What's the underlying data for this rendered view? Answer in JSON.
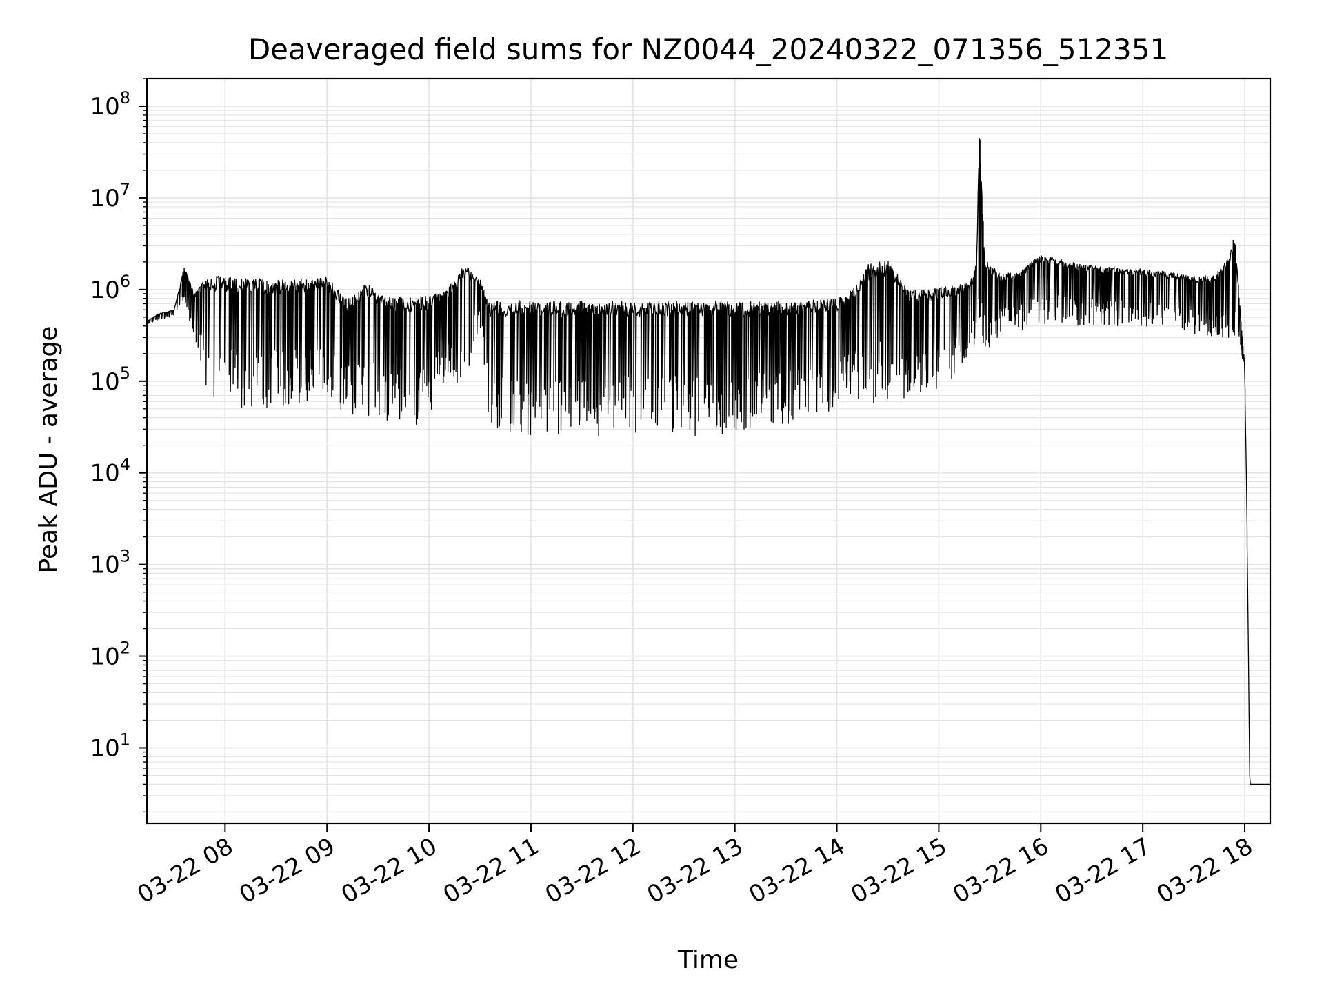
{
  "chart_data": {
    "type": "line",
    "title": "Deaveraged field sums for NZ0044_20240322_071356_512351",
    "xlabel": "Time",
    "ylabel": "Peak ADU - average",
    "yscale": "log",
    "ylim": [
      1.5,
      200000000
    ],
    "xlim": [
      "03-22 07:14",
      "03-22 18:15"
    ],
    "grid": true,
    "line_color": "#000000",
    "grid_color": "#e3e3e3",
    "x_ticks": [
      "03-22 08",
      "03-22 09",
      "03-22 10",
      "03-22 11",
      "03-22 12",
      "03-22 13",
      "03-22 14",
      "03-22 15",
      "03-22 16",
      "03-22 17",
      "03-22 18"
    ],
    "y_ticks": [
      {
        "base": "10",
        "exp": "1",
        "value": 10
      },
      {
        "base": "10",
        "exp": "2",
        "value": 100
      },
      {
        "base": "10",
        "exp": "3",
        "value": 1000
      },
      {
        "base": "10",
        "exp": "4",
        "value": 10000
      },
      {
        "base": "10",
        "exp": "5",
        "value": 100000
      },
      {
        "base": "10",
        "exp": "6",
        "value": 1000000
      },
      {
        "base": "10",
        "exp": "7",
        "value": 10000000
      },
      {
        "base": "10",
        "exp": "8",
        "value": 100000000
      }
    ],
    "series": [
      {
        "x_hours": [
          7.23,
          7.35,
          7.5,
          7.6,
          7.7,
          7.8,
          7.9,
          8.0,
          8.2,
          8.4,
          8.6,
          8.8,
          9.0,
          9.2,
          9.4,
          9.6,
          9.8,
          10.0,
          10.2,
          10.35,
          10.5,
          10.6,
          10.7,
          10.9,
          11.2,
          11.5,
          11.8,
          12.1,
          12.4,
          12.7,
          13.0,
          13.3,
          13.6,
          13.9,
          14.1,
          14.3,
          14.5,
          14.7,
          14.9,
          15.1,
          15.3,
          15.37,
          15.4,
          15.45,
          15.6,
          15.8,
          16.0,
          16.3,
          16.6,
          16.9,
          17.2,
          17.5,
          17.7,
          17.85,
          17.9,
          17.95,
          18.0,
          18.02,
          18.05,
          18.15,
          18.25
        ],
        "upper": [
          450000,
          550000,
          600000,
          1800000,
          900000,
          1300000,
          1400000,
          1400000,
          1350000,
          1300000,
          1300000,
          1300000,
          1400000,
          800000,
          1200000,
          850000,
          850000,
          850000,
          1100000,
          1900000,
          1300000,
          750000,
          750000,
          750000,
          750000,
          750000,
          750000,
          750000,
          750000,
          750000,
          750000,
          750000,
          750000,
          800000,
          850000,
          1900000,
          2200000,
          1000000,
          1000000,
          1100000,
          1200000,
          2000000,
          85000000,
          2200000,
          1500000,
          1600000,
          2500000,
          2000000,
          1800000,
          1700000,
          1600000,
          1400000,
          1400000,
          2500000,
          4000000,
          800000,
          150000,
          5000,
          4,
          4,
          4
        ],
        "lower": [
          420000,
          450000,
          500000,
          700000,
          300000,
          70000,
          60000,
          55000,
          50000,
          50000,
          50000,
          55000,
          60000,
          40000,
          40000,
          35000,
          30000,
          40000,
          100000,
          80000,
          400000,
          25000,
          25000,
          25000,
          25000,
          25000,
          25000,
          25000,
          25000,
          25000,
          25000,
          30000,
          35000,
          40000,
          60000,
          50000,
          60000,
          60000,
          70000,
          100000,
          150000,
          200000,
          500000,
          200000,
          300000,
          350000,
          400000,
          400000,
          400000,
          400000,
          350000,
          300000,
          300000,
          250000,
          300000,
          200000,
          100000,
          3000,
          4,
          4,
          4
        ]
      }
    ]
  }
}
